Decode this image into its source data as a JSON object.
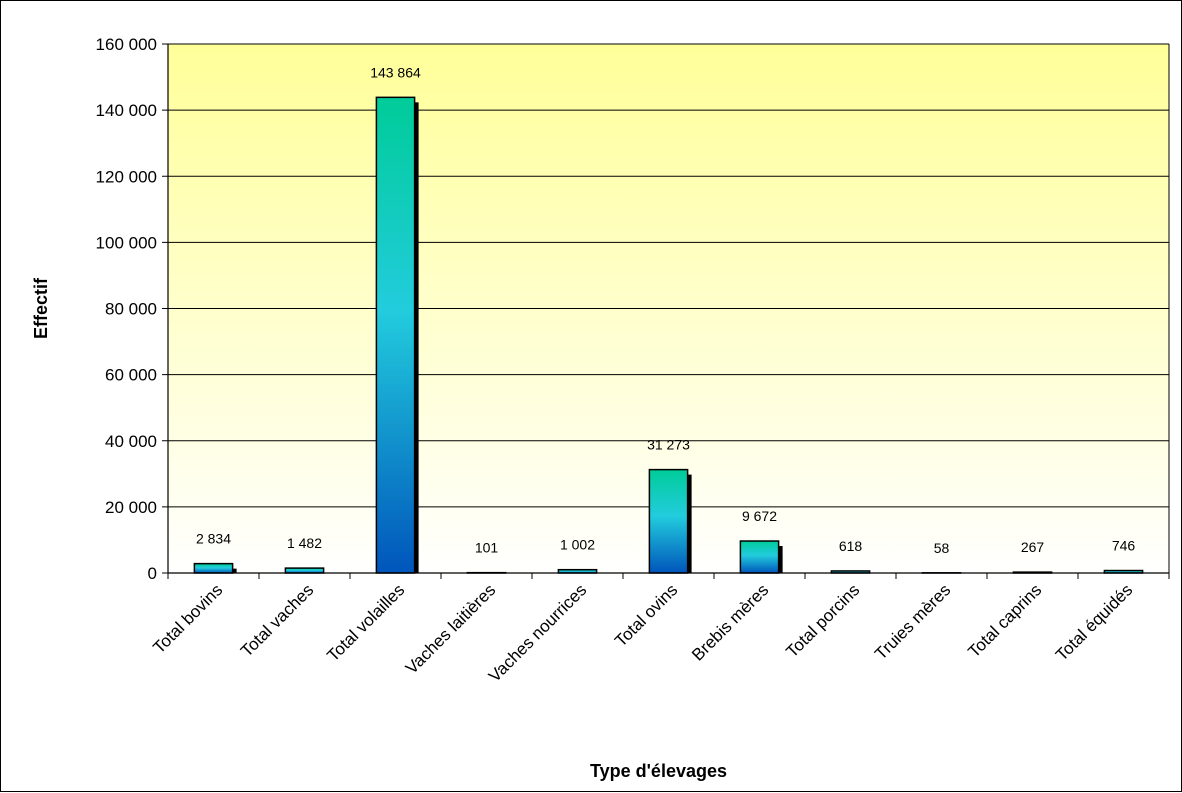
{
  "chart_data": {
    "type": "bar",
    "title": "",
    "xlabel": "Type d'élevages",
    "ylabel": "Effectif",
    "ylim": [
      0,
      160000
    ],
    "yticks": [
      0,
      20000,
      40000,
      60000,
      80000,
      100000,
      120000,
      140000,
      160000
    ],
    "ytick_labels": [
      "0",
      "20 000",
      "40 000",
      "60 000",
      "80 000",
      "100 000",
      "120 000",
      "140 000",
      "160 000"
    ],
    "grid": true,
    "categories": [
      "Total bovins",
      "Total vaches",
      "Total volailles",
      "Vaches laitières",
      "Vaches nourrices",
      "Total ovins",
      "Brebis mères",
      "Total porcins",
      "Truies mères",
      "Total caprins",
      "Total équidés"
    ],
    "values": [
      2834,
      1482,
      143864,
      101,
      1002,
      31273,
      9672,
      618,
      58,
      267,
      746
    ],
    "value_labels": [
      "2 834",
      "1 482",
      "143 864",
      "101",
      "1 002",
      "31 273",
      "9 672",
      "618",
      "58",
      "267",
      "746"
    ],
    "colors": {
      "plot_bg_top": "#FFFF99",
      "plot_bg_bottom": "#FFFFFF",
      "bar_top": "#00CC99",
      "bar_mid": "#22CCDD",
      "bar_bottom": "#0055BB",
      "shadow": "#000000",
      "grid": "#000000"
    }
  }
}
